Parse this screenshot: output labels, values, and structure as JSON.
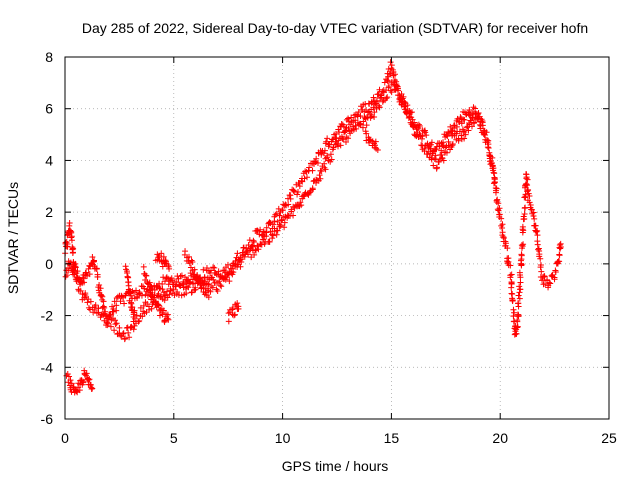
{
  "chart_data": {
    "type": "scatter",
    "title": "Day 285 of 2022, Sidereal Day-to-day VTEC variation (SDTVAR) for receiver hofn",
    "xlabel": "GPS time / hours",
    "ylabel": "SDTVAR / TECUs",
    "xlim": [
      0,
      25
    ],
    "ylim": [
      -6,
      8
    ],
    "xticks": [
      0,
      5,
      10,
      15,
      20,
      25
    ],
    "yticks": [
      -6,
      -4,
      -2,
      0,
      2,
      4,
      6,
      8
    ],
    "grid": true,
    "marker": "+",
    "color": "#ff0000",
    "series": [
      {
        "name": "SDTVAR",
        "trends": [
          [
            [
              0.0,
              0.5
            ],
            [
              0.1,
              0.8
            ],
            [
              0.2,
              1.5
            ],
            [
              0.3,
              1.0
            ],
            [
              0.4,
              0.2
            ],
            [
              0.5,
              -0.3
            ],
            [
              0.7,
              -0.8
            ],
            [
              0.9,
              -0.6
            ],
            [
              1.1,
              -0.3
            ],
            [
              1.3,
              0.2
            ],
            [
              1.5,
              -0.5
            ],
            [
              1.7,
              -1.4
            ],
            [
              1.9,
              -2.2
            ],
            [
              2.1,
              -1.9
            ],
            [
              2.4,
              -1.5
            ],
            [
              2.8,
              -1.3
            ],
            [
              3.2,
              -1.2
            ],
            [
              3.6,
              -1.0
            ],
            [
              4.0,
              -1.1
            ],
            [
              4.4,
              -0.8
            ],
            [
              4.8,
              -0.6
            ],
            [
              5.2,
              -0.7
            ],
            [
              5.6,
              -0.5
            ],
            [
              6.0,
              -0.6
            ],
            [
              6.4,
              -0.4
            ],
            [
              6.8,
              -0.3
            ],
            [
              7.2,
              -0.5
            ],
            [
              7.6,
              -0.1
            ],
            [
              8.0,
              0.3
            ],
            [
              8.4,
              0.7
            ],
            [
              8.8,
              1.1
            ],
            [
              9.2,
              1.3
            ],
            [
              9.6,
              1.6
            ],
            [
              10.0,
              2.2
            ],
            [
              10.4,
              2.6
            ],
            [
              10.8,
              3.1
            ],
            [
              11.2,
              3.6
            ],
            [
              11.6,
              4.1
            ],
            [
              12.0,
              4.6
            ],
            [
              12.4,
              5.0
            ],
            [
              12.8,
              5.3
            ],
            [
              13.2,
              5.6
            ],
            [
              13.6,
              5.9
            ],
            [
              14.0,
              6.1
            ],
            [
              14.4,
              6.5
            ],
            [
              14.8,
              7.1
            ],
            [
              15.0,
              7.7
            ],
            [
              15.2,
              7.0
            ],
            [
              15.5,
              6.3
            ],
            [
              15.8,
              5.9
            ],
            [
              16.1,
              5.4
            ],
            [
              16.4,
              5.1
            ],
            [
              16.7,
              4.7
            ],
            [
              17.0,
              4.3
            ],
            [
              17.3,
              4.6
            ],
            [
              17.6,
              5.0
            ],
            [
              17.9,
              5.3
            ],
            [
              18.2,
              5.6
            ],
            [
              18.5,
              5.8
            ],
            [
              18.8,
              5.9
            ],
            [
              19.1,
              5.6
            ],
            [
              19.4,
              4.8
            ],
            [
              19.7,
              3.5
            ],
            [
              19.9,
              2.2
            ],
            [
              20.1,
              1.3
            ],
            [
              20.3,
              0.5
            ],
            [
              20.5,
              -0.5
            ],
            [
              20.6,
              -1.8
            ],
            [
              20.7,
              -2.8
            ],
            [
              20.8,
              -2.2
            ],
            [
              20.9,
              -1.0
            ],
            [
              21.0,
              0.5
            ],
            [
              21.1,
              2.0
            ],
            [
              21.2,
              3.5
            ],
            [
              21.3,
              2.6
            ],
            [
              21.5,
              2.0
            ],
            [
              21.7,
              1.0
            ],
            [
              21.9,
              -0.5
            ],
            [
              22.2,
              -0.8
            ],
            [
              22.5,
              -0.4
            ],
            [
              22.7,
              0.2
            ],
            [
              22.8,
              0.9
            ]
          ],
          [
            [
              0.05,
              -0.4
            ],
            [
              0.25,
              0.1
            ],
            [
              0.5,
              -0.6
            ],
            [
              0.9,
              -1.3
            ],
            [
              1.3,
              -1.7
            ],
            [
              1.7,
              -1.9
            ],
            [
              2.2,
              -2.3
            ],
            [
              2.6,
              -2.8
            ],
            [
              3.0,
              -2.6
            ],
            [
              3.4,
              -2.0
            ],
            [
              3.8,
              -1.6
            ],
            [
              4.2,
              -1.4
            ],
            [
              4.6,
              -1.2
            ],
            [
              5.0,
              -1.0
            ],
            [
              5.4,
              -1.0
            ],
            [
              5.8,
              -0.9
            ],
            [
              6.2,
              -0.8
            ],
            [
              6.6,
              -0.7
            ],
            [
              7.0,
              -0.9
            ],
            [
              7.4,
              -0.6
            ],
            [
              7.8,
              -0.2
            ],
            [
              8.2,
              0.2
            ],
            [
              8.6,
              0.5
            ],
            [
              9.0,
              0.8
            ],
            [
              9.4,
              1.0
            ],
            [
              9.8,
              1.3
            ],
            [
              10.2,
              1.8
            ],
            [
              10.6,
              2.1
            ],
            [
              11.0,
              2.6
            ],
            [
              11.4,
              3.1
            ],
            [
              11.8,
              3.6
            ],
            [
              12.2,
              4.2
            ],
            [
              12.6,
              4.7
            ],
            [
              13.0,
              5.0
            ],
            [
              13.4,
              5.2
            ],
            [
              13.8,
              5.5
            ],
            [
              14.2,
              5.9
            ],
            [
              14.6,
              6.4
            ],
            [
              15.0,
              6.8
            ],
            [
              15.3,
              6.6
            ],
            [
              15.6,
              6.0
            ],
            [
              15.9,
              5.5
            ],
            [
              16.2,
              5.0
            ],
            [
              16.5,
              4.6
            ],
            [
              16.8,
              4.2
            ],
            [
              17.1,
              3.8
            ],
            [
              17.4,
              4.2
            ],
            [
              17.7,
              4.7
            ],
            [
              18.0,
              4.9
            ],
            [
              18.3,
              5.0
            ],
            [
              18.6,
              5.3
            ],
            [
              18.9,
              5.6
            ],
            [
              19.2,
              5.2
            ],
            [
              19.5,
              4.3
            ],
            [
              19.8,
              2.9
            ]
          ],
          [
            [
              2.8,
              -0.2
            ],
            [
              2.9,
              -0.6
            ],
            [
              3.0,
              -1.2
            ],
            [
              3.1,
              -1.7
            ],
            [
              3.2,
              -2.1
            ]
          ],
          [
            [
              3.6,
              -0.3
            ],
            [
              3.8,
              -0.7
            ],
            [
              4.0,
              -1.2
            ],
            [
              4.2,
              -1.6
            ],
            [
              4.4,
              -1.9
            ],
            [
              4.6,
              -2.1
            ],
            [
              4.8,
              -2.2
            ]
          ],
          [
            [
              4.2,
              0.3
            ],
            [
              4.4,
              0.2
            ],
            [
              4.6,
              0.0
            ],
            [
              4.8,
              -0.2
            ]
          ],
          [
            [
              5.5,
              0.4
            ],
            [
              5.8,
              0.0
            ],
            [
              6.1,
              -0.6
            ],
            [
              6.4,
              -1.0
            ],
            [
              6.7,
              -1.3
            ]
          ],
          [
            [
              7.5,
              -2.0
            ],
            [
              7.8,
              -1.8
            ],
            [
              8.0,
              -1.6
            ]
          ],
          [
            [
              0.1,
              -4.3
            ],
            [
              0.3,
              -4.8
            ],
            [
              0.5,
              -5.1
            ],
            [
              0.7,
              -4.6
            ],
            [
              0.9,
              -4.3
            ],
            [
              1.1,
              -4.6
            ],
            [
              1.3,
              -4.9
            ]
          ],
          [
            [
              13.8,
              5.0
            ],
            [
              14.1,
              4.8
            ],
            [
              14.4,
              4.6
            ]
          ]
        ]
      }
    ]
  }
}
